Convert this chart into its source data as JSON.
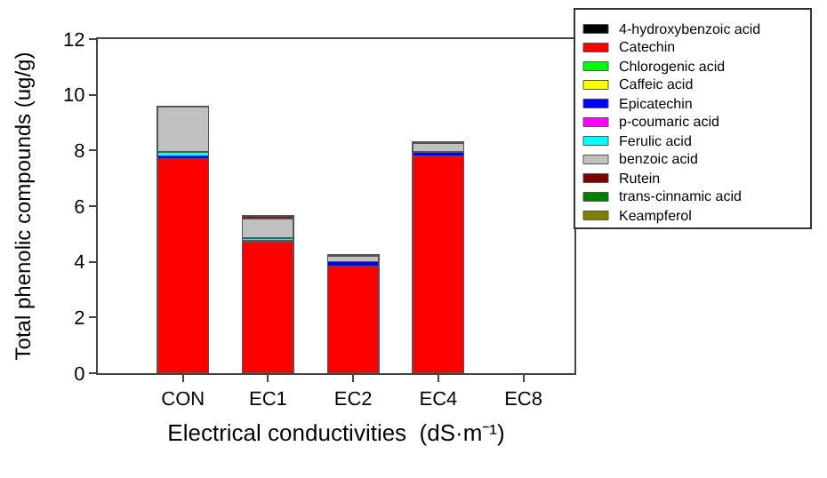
{
  "chart_data": {
    "type": "bar",
    "stacked": true,
    "xlabel": "Electrical conductivities  (dS·m⁻¹)",
    "ylabel": "Total phenolic compounds (ug/g)",
    "categories": [
      "CON",
      "EC1",
      "EC2",
      "EC4",
      "EC8"
    ],
    "series": [
      {
        "name": "4-hydroxybenzoic acid",
        "color": "#000000",
        "values": [
          null,
          null,
          null,
          null,
          0
        ]
      },
      {
        "name": "Catechin",
        "color": "#ff0000",
        "values": [
          7.7,
          4.7,
          3.85,
          7.8,
          0
        ]
      },
      {
        "name": "Chlorogenic acid",
        "color": "#00ff00",
        "values": [
          0,
          0,
          0,
          0,
          0
        ]
      },
      {
        "name": "Caffeic acid",
        "color": "#ffff00",
        "values": [
          0,
          0,
          0,
          0,
          0
        ]
      },
      {
        "name": "Epicatechin",
        "color": "#0000ff",
        "values": [
          0.1,
          0.05,
          0.15,
          0.15,
          0
        ]
      },
      {
        "name": "p-coumaric acid",
        "color": "#ff00ff",
        "values": [
          0,
          0,
          0,
          0,
          0
        ]
      },
      {
        "name": "Ferulic acid",
        "color": "#00ffff",
        "values": [
          0.15,
          0.1,
          0,
          0,
          0
        ]
      },
      {
        "name": "benzoic acid",
        "color": "#c0c0c0",
        "values": [
          1.6,
          0.7,
          0.2,
          0.3,
          0
        ]
      },
      {
        "name": "Rutein",
        "color": "#800000",
        "values": [
          0.05,
          0.1,
          0.05,
          0.05,
          0
        ]
      },
      {
        "name": "trans-cinnamic acid",
        "color": "#008000",
        "values": [
          0,
          0,
          0,
          0,
          0
        ]
      },
      {
        "name": "Keampferol",
        "color": "#808000",
        "values": [
          0,
          0,
          0,
          0,
          0
        ]
      }
    ],
    "ylim": [
      0,
      12
    ],
    "yticks": [
      0,
      2,
      4,
      6,
      8,
      10,
      12
    ],
    "legend": "right"
  }
}
